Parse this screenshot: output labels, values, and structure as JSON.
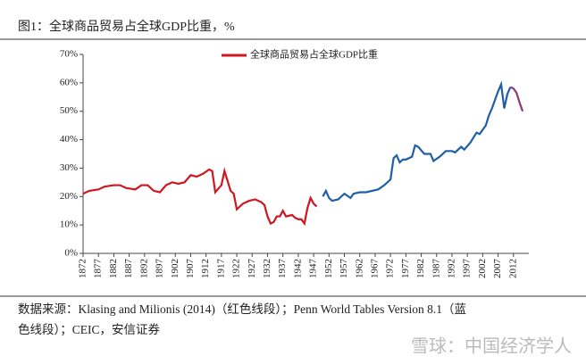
{
  "chart_data": {
    "type": "line",
    "title": "图1：全球商品贸易占全球GDP比重，%",
    "source": [
      "数据来源：Klasing and Milionis (2014)（红色线段）；Penn World Tables Version 8.1（蓝",
      "色线段）；CEIC，安信证券"
    ],
    "watermark": "雪球：中国经济学人",
    "xlim": [
      1872,
      2017
    ],
    "xticks": [
      1872,
      1877,
      1882,
      1887,
      1892,
      1897,
      1902,
      1907,
      1912,
      1917,
      1922,
      1927,
      1932,
      1937,
      1942,
      1947,
      1952,
      1957,
      1962,
      1967,
      1972,
      1977,
      1982,
      1987,
      1992,
      1997,
      2002,
      2007,
      2012
    ],
    "ylim": [
      0,
      70
    ],
    "yticks": [
      {
        "value": 0,
        "label": "0%"
      },
      {
        "value": 10,
        "label": "10%"
      },
      {
        "value": 20,
        "label": "20%"
      },
      {
        "value": 30,
        "label": "30%"
      },
      {
        "value": 40,
        "label": "40%"
      },
      {
        "value": 50,
        "label": "50%"
      },
      {
        "value": 60,
        "label": "60%"
      },
      {
        "value": 70,
        "label": "70%"
      }
    ],
    "series": [
      {
        "name": "全球商品贸易占全球GDP比重",
        "color": "#d0161e",
        "x": [
          1872,
          1874,
          1877,
          1879,
          1882,
          1884,
          1886,
          1889,
          1891,
          1893,
          1895,
          1897,
          1899,
          1901,
          1903,
          1905,
          1907,
          1909,
          1911,
          1913,
          1914,
          1915,
          1917,
          1918,
          1920,
          1921,
          1922,
          1924,
          1926,
          1928,
          1930,
          1931,
          1932,
          1933,
          1934,
          1935,
          1936,
          1937,
          1938,
          1940,
          1941,
          1942,
          1943,
          1944,
          1945,
          1946,
          1947,
          1948
        ],
        "values": [
          21,
          22,
          22.5,
          23.5,
          24,
          24,
          23,
          22.5,
          24,
          24,
          22,
          21.5,
          24,
          25,
          24.5,
          25,
          27.5,
          27,
          28,
          29.5,
          29,
          21.5,
          24,
          29,
          22,
          21,
          15.5,
          17.5,
          18.5,
          19,
          18,
          17,
          13,
          10.5,
          11,
          13,
          13,
          15,
          13,
          13.5,
          12.5,
          12,
          12,
          10.5,
          16,
          19.5,
          17.5,
          16.5
        ]
      },
      {
        "color": "#1f5fa8",
        "x": [
          1950,
          1951,
          1952,
          1953,
          1955,
          1957,
          1959,
          1960,
          1962,
          1964,
          1966,
          1968,
          1970,
          1972,
          1973,
          1974,
          1975,
          1976,
          1977,
          1979,
          1980,
          1981,
          1983,
          1985,
          1986,
          1988,
          1990,
          1992,
          1993,
          1995,
          1996,
          1998,
          2000,
          2001,
          2003,
          2004,
          2005,
          2006,
          2007,
          2008,
          2009,
          2010,
          2011
        ],
        "values": [
          20,
          22,
          19.5,
          18.5,
          19,
          21,
          19.5,
          21,
          21.5,
          21.5,
          22,
          22.5,
          24,
          26,
          33.5,
          34.5,
          32,
          33,
          33,
          34,
          38,
          37.5,
          35,
          35,
          32.5,
          34,
          36,
          36,
          35.5,
          37.5,
          36.5,
          39,
          42.5,
          42,
          45,
          48.5,
          51,
          54,
          57,
          59.5,
          51,
          56,
          58.5
        ]
      },
      {
        "color": "#8a3a78",
        "x": [
          2011,
          2012,
          2013,
          2014,
          2015
        ],
        "values": [
          58.5,
          58,
          56.5,
          53,
          50
        ]
      }
    ]
  }
}
